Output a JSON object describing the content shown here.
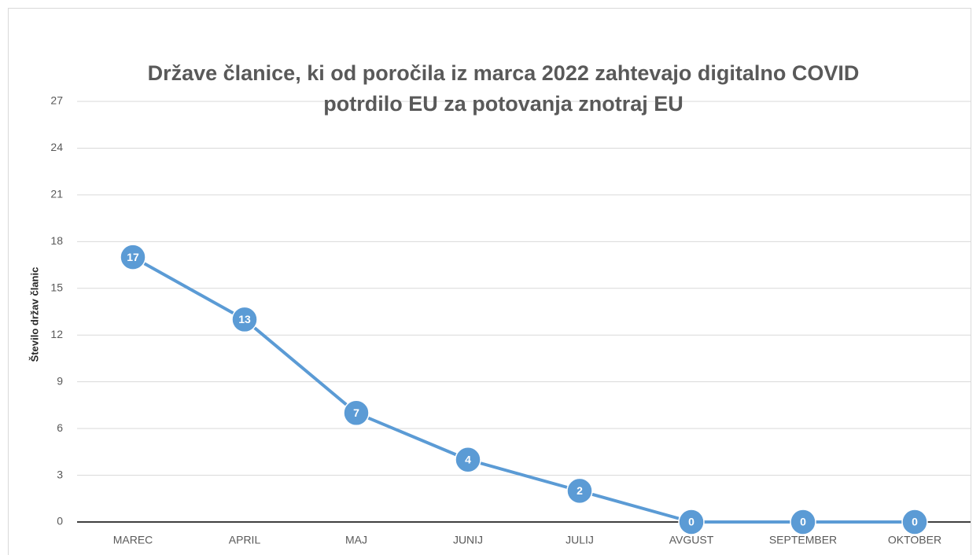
{
  "chart_data": {
    "type": "line",
    "title": "Države članice, ki od poročila iz marca 2022 zahtevajo digitalno COVID potrdilo EU za potovanja znotraj EU",
    "y_label": "Število držav članic",
    "categories": [
      "MAREC",
      "APRIL",
      "MAJ",
      "JUNIJ",
      "JULIJ",
      "AVGUST",
      "SEPTEMBER",
      "OKTOBER"
    ],
    "values": [
      17,
      13,
      7,
      4,
      2,
      0,
      0,
      0
    ],
    "color": "#5b9bd5",
    "ylim": [
      0,
      27
    ],
    "yticks": [
      0,
      3,
      6,
      9,
      12,
      15,
      18,
      21,
      24,
      27
    ],
    "grid": true
  }
}
